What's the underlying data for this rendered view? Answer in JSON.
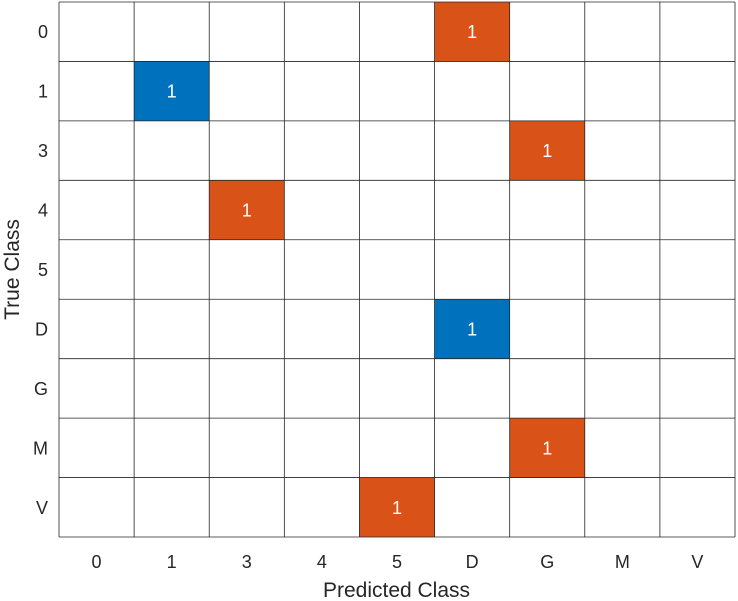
{
  "chart_data": {
    "type": "heatmap",
    "subtype": "confusion-matrix",
    "xlabel": "Predicted Class",
    "ylabel": "True Class",
    "x_categories": [
      "0",
      "1",
      "3",
      "4",
      "5",
      "D",
      "G",
      "M",
      "V"
    ],
    "y_categories": [
      "0",
      "1",
      "3",
      "4",
      "5",
      "D",
      "G",
      "M",
      "V"
    ],
    "cells": [
      {
        "true": "0",
        "predicted": "D",
        "value": 1,
        "kind": "incorrect"
      },
      {
        "true": "1",
        "predicted": "1",
        "value": 1,
        "kind": "correct"
      },
      {
        "true": "3",
        "predicted": "G",
        "value": 1,
        "kind": "incorrect"
      },
      {
        "true": "4",
        "predicted": "3",
        "value": 1,
        "kind": "incorrect"
      },
      {
        "true": "D",
        "predicted": "D",
        "value": 1,
        "kind": "correct"
      },
      {
        "true": "M",
        "predicted": "G",
        "value": 1,
        "kind": "incorrect"
      },
      {
        "true": "V",
        "predicted": "5",
        "value": 1,
        "kind": "incorrect"
      }
    ],
    "grid": true,
    "colors": {
      "correct": "#0072BD",
      "incorrect": "#D95319",
      "empty": "#FFFFFF",
      "grid_line": "#262626",
      "value_text": "#FFFFFF"
    }
  }
}
